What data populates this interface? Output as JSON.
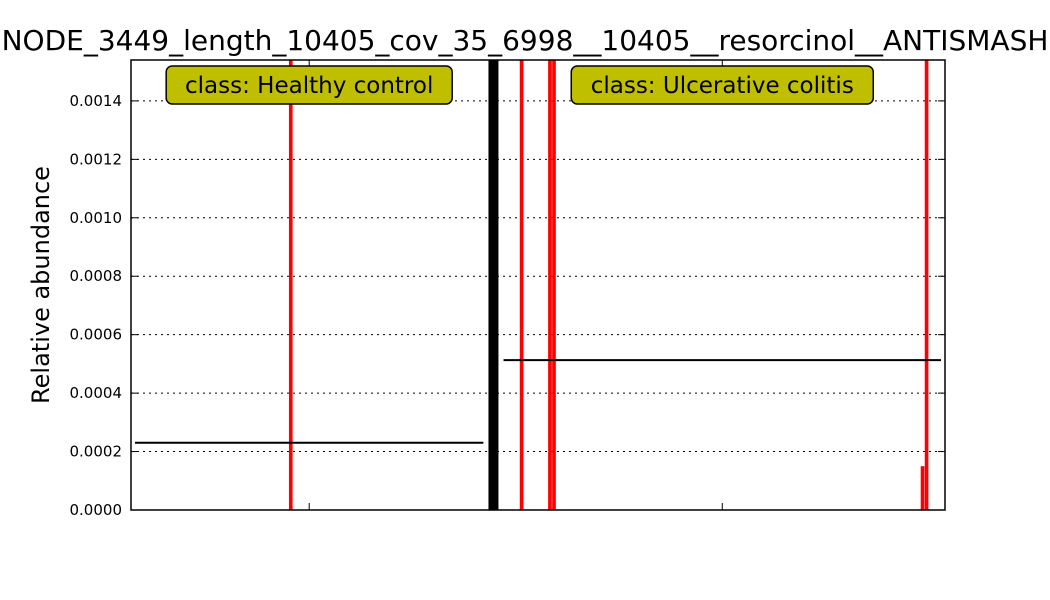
{
  "chart_data": {
    "type": "bar",
    "title": "NODE_3449_length_10405_cov_35_6998__10405__resorcinol__ANTISMASH",
    "xlabel": "",
    "ylabel": "Relative abundance",
    "ylim": [
      0,
      0.00154
    ],
    "yticks": [
      "0.0000",
      "0.0002",
      "0.0004",
      "0.0006",
      "0.0008",
      "0.0010",
      "0.0012",
      "0.0014"
    ],
    "ytick_values": [
      0,
      0.0002,
      0.0004,
      0.0006,
      0.0008,
      0.001,
      0.0012,
      0.0014
    ],
    "grid": true,
    "bar_color": "#ff0000",
    "mean_color": "#000000",
    "label_box_color": "#bfbf00",
    "groups": [
      {
        "label": "class: Healthy control",
        "n_samples": 88,
        "mean": 0.00023,
        "nonzero": [
          {
            "index": 39,
            "value": 0.00154
          }
        ]
      },
      {
        "label": "class: Ulcerative colitis",
        "n_samples": 110,
        "mean": 0.000513,
        "nonzero": [
          {
            "index": 5,
            "value": 0.00154
          },
          {
            "index": 12,
            "value": 0.00154
          },
          {
            "index": 13,
            "value": 0.00154
          },
          {
            "index": 104,
            "value": 0.00015
          },
          {
            "index": 105,
            "value": 0.00154
          }
        ]
      }
    ]
  }
}
